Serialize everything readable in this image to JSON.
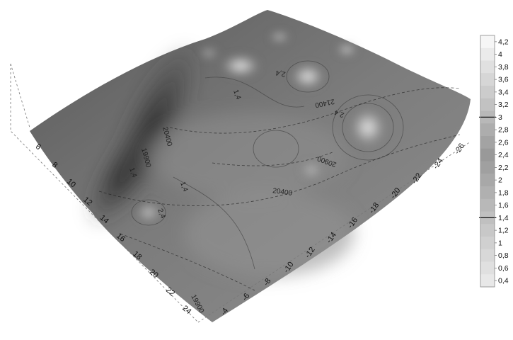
{
  "chart_data": {
    "type": "surface",
    "colorbar": {
      "labels": [
        "4,2",
        "4",
        "3,8",
        "3,6",
        "3,4",
        "3,2",
        "3",
        "2,8",
        "2,6",
        "2,4",
        "2,2",
        "2",
        "1,8",
        "1,6",
        "1,4",
        "1,2",
        "1",
        "0,8",
        "0,6",
        "0,4"
      ],
      "shades": [
        "#f6f6f6",
        "#ebebeb",
        "#e0e0e0",
        "#d6d6d6",
        "#cccccc",
        "#c2c2c2",
        "#b8b8b8",
        "#adadad",
        "#a3a3a3",
        "#999999",
        "#a0a0a0",
        "#a8a8a8",
        "#b0b0b0",
        "#b8b8b8",
        "#c0c0c0",
        "#c8c8c8",
        "#d0d0d0",
        "#d8d8d8",
        "#e0e0e0",
        "#e8e8e8"
      ],
      "emphasized": [
        "3",
        "1,4"
      ]
    },
    "axis_left_ticks": [
      "6",
      "8",
      "10",
      "12",
      "14",
      "16",
      "18",
      "20",
      "22",
      "24"
    ],
    "axis_bottom_ticks": [
      "-4",
      "-6",
      "-8",
      "-10",
      "-12",
      "-14",
      "-16",
      "-18",
      "-20",
      "-22",
      "-24",
      "-26"
    ],
    "contour_labels": [
      {
        "text": "19900",
        "contour": "dashed"
      },
      {
        "text": "20400",
        "contour": "dashed"
      },
      {
        "text": "20900",
        "contour": "dashed"
      },
      {
        "text": "21400",
        "contour": "dashed"
      },
      {
        "text": "1,4",
        "contour": "solid"
      },
      {
        "text": "2,4",
        "contour": "solid"
      },
      {
        "text": "1,4",
        "contour": "solid"
      },
      {
        "text": "2,4",
        "contour": "solid"
      },
      {
        "text": "2,4",
        "contour": "solid"
      },
      {
        "text": "1,4",
        "contour": "solid"
      },
      {
        "text": "19900",
        "contour": "dashed"
      },
      {
        "text": "20400",
        "contour": "dashed"
      }
    ]
  }
}
